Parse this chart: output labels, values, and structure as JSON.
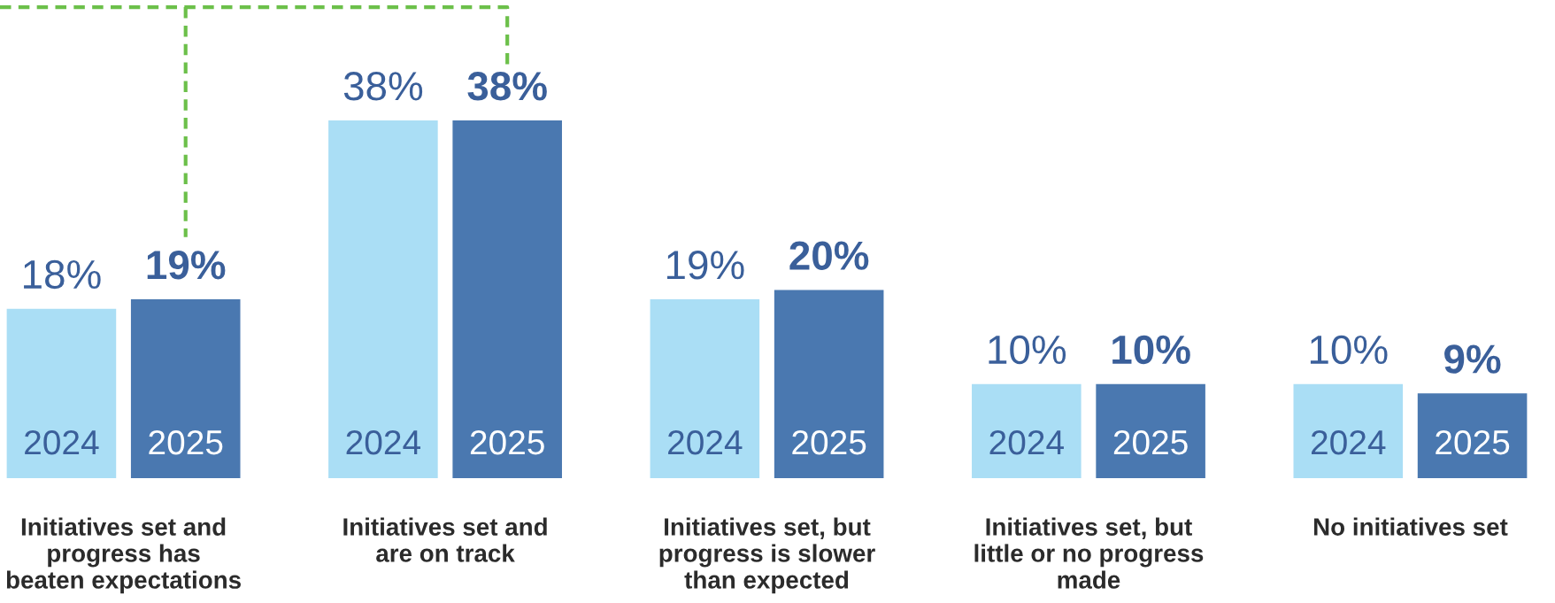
{
  "chart_data": {
    "type": "bar",
    "categories": [
      "Initiatives set and\nprogress has\nbeaten expectations",
      "Initiatives set and\nare on track",
      "Initiatives set, but\nprogress is slower\nthan expected",
      "Initiatives set, but\nlittle or no progress\nmade",
      "No initiatives set"
    ],
    "series": [
      {
        "name": "2024",
        "color": "#aadef5",
        "values": [
          18,
          38,
          19,
          10,
          10
        ],
        "value_labels": [
          "18%",
          "38%",
          "19%",
          "10%",
          "10%"
        ]
      },
      {
        "name": "2025",
        "color": "#4a78b0",
        "values": [
          19,
          38,
          20,
          10,
          9
        ],
        "value_labels": [
          "19%",
          "38%",
          "20%",
          "10%",
          "9%"
        ]
      }
    ],
    "legend": false,
    "grid": false,
    "tick_labels": "x"
  }
}
